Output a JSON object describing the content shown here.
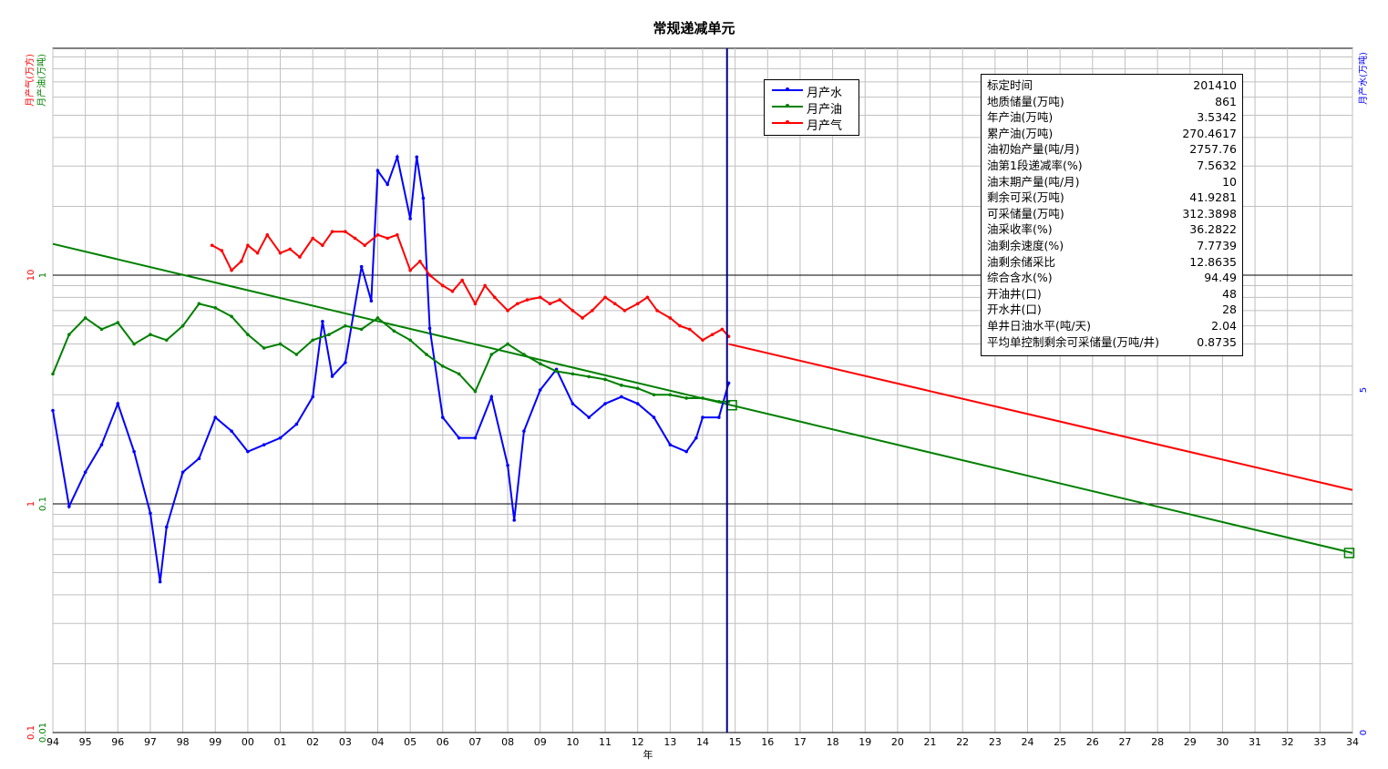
{
  "chart_data": {
    "type": "line",
    "title": "常规递减单元",
    "xlabel": "年",
    "x_ticks": [
      "94",
      "95",
      "96",
      "97",
      "98",
      "99",
      "00",
      "01",
      "02",
      "03",
      "04",
      "05",
      "06",
      "07",
      "08",
      "09",
      "10",
      "11",
      "12",
      "13",
      "14",
      "15",
      "16",
      "17",
      "18",
      "19",
      "20",
      "21",
      "22",
      "23",
      "24",
      "25",
      "26",
      "27",
      "28",
      "29",
      "30",
      "31",
      "32",
      "33",
      "34"
    ],
    "left_axis_labels": [
      "月产气(万方)",
      "月产油(万吨)"
    ],
    "right_axis_label": "月产水(万吨)",
    "left_ticks_red": [
      "10",
      "1",
      "0.1"
    ],
    "left_ticks_green": [
      "1",
      "0.1",
      "0.01"
    ],
    "right_ticks": [
      "5",
      "0"
    ],
    "scale": "log",
    "grid": true,
    "legend_position": "top-center",
    "colors": {
      "water": "#0000ff",
      "oil": "#008000",
      "gas": "#ff0000",
      "fit": "#000000",
      "cutoff": "#00008b"
    },
    "series": [
      {
        "name": "月产水",
        "color": "#0000ff",
        "x": [
          1994.0,
          1994.5,
          1995.0,
          1995.5,
          1996.0,
          1996.5,
          1997.0,
          1997.3,
          1997.5,
          1998.0,
          1998.5,
          1999.0,
          1999.5,
          2000.0,
          2000.5,
          2001.0,
          2001.5,
          2002.0,
          2002.3,
          2002.6,
          2003.0,
          2003.5,
          2003.8,
          2004.0,
          2004.3,
          2004.6,
          2005.0,
          2005.2,
          2005.4,
          2005.6,
          2006.0,
          2006.5,
          2007.0,
          2007.5,
          2008.0,
          2008.2,
          2008.5,
          2009.0,
          2009.5,
          2010.0,
          2010.5,
          2011.0,
          2011.5,
          2012.0,
          2012.5,
          2013.0,
          2013.5,
          2013.8,
          2014.0,
          2014.5,
          2014.8
        ],
        "y": [
          4.7,
          3.3,
          3.8,
          4.2,
          4.8,
          4.1,
          3.2,
          2.2,
          3.0,
          3.8,
          4.0,
          4.6,
          4.4,
          4.1,
          4.2,
          4.3,
          4.5,
          4.9,
          6.0,
          5.2,
          5.4,
          6.8,
          6.3,
          8.2,
          8.0,
          8.4,
          7.5,
          8.4,
          7.8,
          5.9,
          4.6,
          4.3,
          4.3,
          4.9,
          3.9,
          3.1,
          4.4,
          5.0,
          5.3,
          4.8,
          4.6,
          4.8,
          4.9,
          4.8,
          4.6,
          4.2,
          4.1,
          4.3,
          4.6,
          4.6,
          5.1
        ]
      },
      {
        "name": "月产油",
        "color": "#008000",
        "x": [
          1994.0,
          1994.5,
          1995.0,
          1995.5,
          1996.0,
          1996.5,
          1997.0,
          1997.5,
          1998.0,
          1998.5,
          1999.0,
          1999.5,
          2000.0,
          2000.5,
          2001.0,
          2001.5,
          2002.0,
          2002.5,
          2003.0,
          2003.5,
          2004.0,
          2004.5,
          2005.0,
          2005.5,
          2006.0,
          2006.5,
          2007.0,
          2007.5,
          2008.0,
          2008.5,
          2009.0,
          2009.5,
          2010.0,
          2010.5,
          2011.0,
          2011.5,
          2012.0,
          2012.5,
          2013.0,
          2013.5,
          2014.0,
          2014.5,
          2014.8
        ],
        "y": [
          0.37,
          0.55,
          0.65,
          0.58,
          0.62,
          0.5,
          0.55,
          0.52,
          0.6,
          0.75,
          0.72,
          0.66,
          0.55,
          0.48,
          0.5,
          0.45,
          0.52,
          0.55,
          0.6,
          0.58,
          0.65,
          0.57,
          0.52,
          0.45,
          0.4,
          0.37,
          0.31,
          0.45,
          0.5,
          0.45,
          0.41,
          0.38,
          0.37,
          0.36,
          0.35,
          0.33,
          0.32,
          0.3,
          0.3,
          0.29,
          0.29,
          0.28,
          0.28
        ]
      },
      {
        "name": "月产气",
        "color": "#ff0000",
        "x": [
          1998.9,
          1999.2,
          1999.5,
          1999.8,
          2000.0,
          2000.3,
          2000.6,
          2001.0,
          2001.3,
          2001.6,
          2002.0,
          2002.3,
          2002.6,
          2003.0,
          2003.3,
          2003.6,
          2004.0,
          2004.3,
          2004.6,
          2005.0,
          2005.3,
          2005.6,
          2006.0,
          2006.3,
          2006.6,
          2007.0,
          2007.3,
          2007.6,
          2008.0,
          2008.3,
          2008.6,
          2009.0,
          2009.3,
          2009.6,
          2010.0,
          2010.3,
          2010.6,
          2011.0,
          2011.3,
          2011.6,
          2012.0,
          2012.3,
          2012.6,
          2013.0,
          2013.3,
          2013.6,
          2014.0,
          2014.3,
          2014.6,
          2014.8
        ],
        "y": [
          13.5,
          12.8,
          10.5,
          11.5,
          13.5,
          12.5,
          15.0,
          12.5,
          13.0,
          12.0,
          14.5,
          13.5,
          15.5,
          15.5,
          14.5,
          13.5,
          15.0,
          14.5,
          15.0,
          10.5,
          11.5,
          10.0,
          9.0,
          8.5,
          9.5,
          7.5,
          9.0,
          8.0,
          7.0,
          7.5,
          7.8,
          8.0,
          7.5,
          7.8,
          7.0,
          6.5,
          7.0,
          8.0,
          7.5,
          7.0,
          7.5,
          8.0,
          7.0,
          6.5,
          6.0,
          5.8,
          5.2,
          5.5,
          5.8,
          5.4
        ]
      }
    ],
    "fit_lines": [
      {
        "name": "oil-decline-fit",
        "color": "#008000",
        "x": [
          1994.0,
          2034.0
        ],
        "y": [
          1.37,
          0.061
        ]
      },
      {
        "name": "gas-forecast",
        "color": "#ff0000",
        "x": [
          2014.8,
          2034.0
        ],
        "y": [
          5.0,
          1.15
        ]
      }
    ],
    "cutoff_x": 2014.75,
    "markers": [
      {
        "x": 2014.9,
        "y": 0.27,
        "color": "#008000"
      },
      {
        "x": 2033.9,
        "y": 0.061,
        "color": "#008000"
      }
    ]
  },
  "legend": {
    "items": [
      {
        "label": "月产水",
        "color": "#0000ff"
      },
      {
        "label": "月产油",
        "color": "#008000"
      },
      {
        "label": "月产气",
        "color": "#ff0000"
      }
    ]
  },
  "info": {
    "rows": [
      {
        "k": "标定时间",
        "v": "201410"
      },
      {
        "k": "地质储量(万吨)",
        "v": "861"
      },
      {
        "k": "年产油(万吨)",
        "v": "3.5342"
      },
      {
        "k": "累产油(万吨)",
        "v": "270.4617"
      },
      {
        "k": "油初始产量(吨/月)",
        "v": "2757.76"
      },
      {
        "k": "油第1段递减率(%)",
        "v": "7.5632"
      },
      {
        "k": "油末期产量(吨/月)",
        "v": "10"
      },
      {
        "k": "剩余可采(万吨)",
        "v": "41.9281"
      },
      {
        "k": "可采储量(万吨)",
        "v": "312.3898"
      },
      {
        "k": "油采收率(%)",
        "v": "36.2822"
      },
      {
        "k": "油剩余速度(%)",
        "v": "7.7739"
      },
      {
        "k": "油剩余储采比",
        "v": "12.8635"
      },
      {
        "k": "综合含水(%)",
        "v": "94.49"
      },
      {
        "k": "开油井(口)",
        "v": "48"
      },
      {
        "k": "开水井(口)",
        "v": "28"
      },
      {
        "k": "单井日油水平(吨/天)",
        "v": "2.04"
      },
      {
        "k": "平均单控制剩余可采储量(万吨/井)",
        "v": "0.8735"
      }
    ]
  }
}
